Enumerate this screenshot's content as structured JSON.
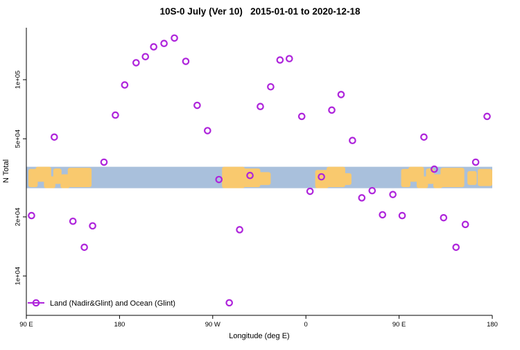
{
  "chart_data": {
    "type": "scatter",
    "title": "10S-0 July (Ver 10)   2015-01-01 to 2020-12-18",
    "xlabel": "Longitude (deg E)",
    "ylabel": "N Total",
    "x_axis": {
      "lim": [
        90,
        540
      ],
      "ticks": [
        {
          "value": 90,
          "label": "90 E"
        },
        {
          "value": 180,
          "label": "180"
        },
        {
          "value": 270,
          "label": "90 W"
        },
        {
          "value": 360,
          "label": "0"
        },
        {
          "value": 450,
          "label": "90 E"
        },
        {
          "value": 540,
          "label": "180"
        }
      ]
    },
    "y_axis": {
      "scale": "log",
      "lim": [
        6300,
        184000
      ],
      "ticks": [
        {
          "value": 100000,
          "label": "1e+05"
        },
        {
          "value": 50000,
          "label": "5e+04"
        },
        {
          "value": 20000,
          "label": "2e+04"
        },
        {
          "value": 10000,
          "label": "1e+04"
        }
      ]
    },
    "legend": {
      "label": "Land (Nadir&Glint) and Ocean (Glint)"
    },
    "point_style": {
      "shape": "open-circle",
      "color": "#ae24db"
    },
    "map_band": {
      "value_top": 36000,
      "value_bottom": 28000,
      "ocean_color": "#a9c0dc",
      "land_color": "#f9c96e",
      "land_blobs": [
        [
          92,
          101,
          0.1,
          0.95
        ],
        [
          99,
          114,
          0.0,
          0.7
        ],
        [
          107,
          118,
          0.45,
          1.0
        ],
        [
          116,
          124,
          0.08,
          0.8
        ],
        [
          123,
          132,
          0.35,
          1.0
        ],
        [
          130,
          153,
          0.05,
          0.95
        ],
        [
          279,
          301,
          0.0,
          1.0
        ],
        [
          299,
          316,
          0.08,
          0.95
        ],
        [
          314,
          326,
          0.25,
          0.85
        ],
        [
          369,
          382,
          0.15,
          1.0
        ],
        [
          380,
          398,
          0.0,
          0.95
        ],
        [
          396,
          404,
          0.3,
          0.85
        ],
        [
          452,
          461,
          0.1,
          0.95
        ],
        [
          459,
          474,
          0.0,
          0.7
        ],
        [
          467,
          478,
          0.45,
          1.0
        ],
        [
          476,
          484,
          0.08,
          0.8
        ],
        [
          483,
          492,
          0.35,
          1.0
        ],
        [
          490,
          513,
          0.05,
          0.95
        ],
        [
          516,
          525,
          0.2,
          0.85
        ],
        [
          526,
          540,
          0.1,
          0.9
        ]
      ]
    },
    "points": [
      [
        95,
        20300
      ],
      [
        117,
        51000
      ],
      [
        135,
        19000
      ],
      [
        146,
        14000
      ],
      [
        154,
        18000
      ],
      [
        165,
        38000
      ],
      [
        176,
        66000
      ],
      [
        185,
        94000
      ],
      [
        196,
        122000
      ],
      [
        205,
        131000
      ],
      [
        213,
        147000
      ],
      [
        223,
        153000
      ],
      [
        233,
        163000
      ],
      [
        244,
        124000
      ],
      [
        255,
        74000
      ],
      [
        265,
        55000
      ],
      [
        276,
        31000
      ],
      [
        286,
        7300
      ],
      [
        296,
        17200
      ],
      [
        306,
        32500
      ],
      [
        316,
        73000
      ],
      [
        326,
        92000
      ],
      [
        335,
        126000
      ],
      [
        344,
        128000
      ],
      [
        356,
        65000
      ],
      [
        364,
        27000
      ],
      [
        375,
        32000
      ],
      [
        385,
        70000
      ],
      [
        394,
        84000
      ],
      [
        405,
        49000
      ],
      [
        414,
        25000
      ],
      [
        424,
        27200
      ],
      [
        434,
        20500
      ],
      [
        444,
        26000
      ],
      [
        453,
        20300
      ],
      [
        474,
        51000
      ],
      [
        484,
        35000
      ],
      [
        493,
        19800
      ],
      [
        505,
        14000
      ],
      [
        514,
        18300
      ],
      [
        524,
        38000
      ],
      [
        535,
        65000
      ]
    ]
  }
}
